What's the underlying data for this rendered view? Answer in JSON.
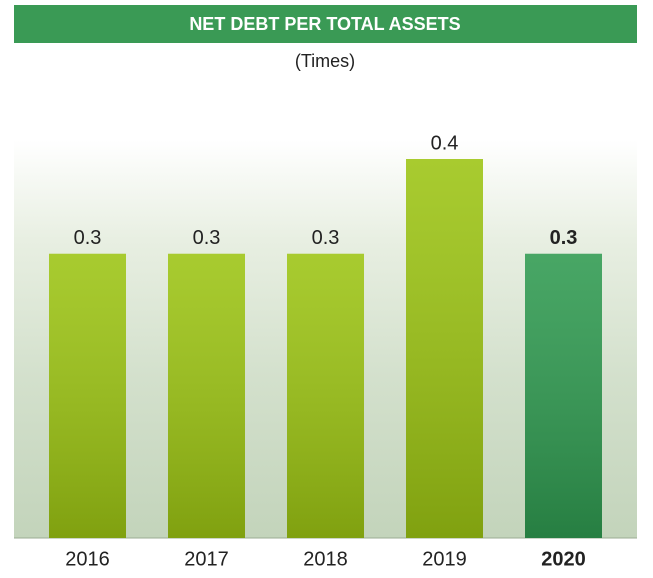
{
  "chart_data": {
    "type": "bar",
    "title": "NET DEBT PER TOTAL ASSETS",
    "subtitle": "(Times)",
    "categories": [
      "2016",
      "2017",
      "2018",
      "2019",
      "2020"
    ],
    "values": [
      0.3,
      0.3,
      0.3,
      0.4,
      0.3
    ],
    "colors": [
      "#9cc413",
      "#9cc413",
      "#9cc413",
      "#9cc413",
      "#2f9a50"
    ],
    "bold": [
      false,
      false,
      false,
      false,
      true
    ]
  }
}
